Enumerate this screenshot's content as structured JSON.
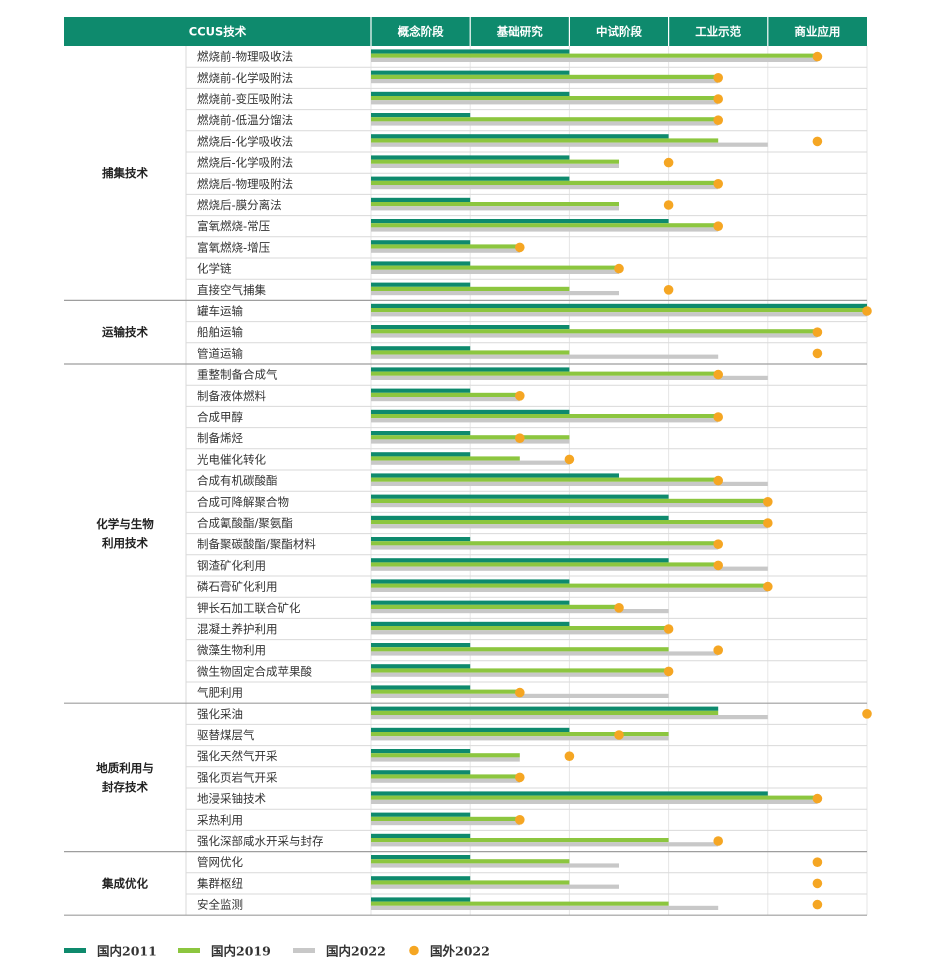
{
  "chart_data": {
    "type": "bar",
    "header": {
      "first_col": "CCUS技术",
      "stages": [
        "概念阶段",
        "基础研究",
        "中试阶段",
        "工业示范",
        "商业应用"
      ]
    },
    "value_scale": "stage units: 0 = start of 概念阶段, 5 = end of 商业应用",
    "xlim": [
      0,
      5
    ],
    "series": [
      {
        "name": "国内2011",
        "color": "#0e8a6d"
      },
      {
        "name": "国内2019",
        "color": "#8cc63f"
      },
      {
        "name": "国内2022",
        "color": "#c8c8c8"
      },
      {
        "name": "国外2022",
        "color": "#f5a623"
      }
    ],
    "categories": [
      {
        "label": "捕集技术",
        "label_lines": [
          "捕集技术"
        ],
        "rows": [
          {
            "name": "燃烧前-物理吸收法",
            "v2011": 2,
            "v2019": 4.5,
            "v2022": 4.5,
            "foreign": 4.5
          },
          {
            "name": "燃烧前-化学吸附法",
            "v2011": 2,
            "v2019": 3.5,
            "v2022": 3.5,
            "foreign": 3.5
          },
          {
            "name": "燃烧前-变压吸附法",
            "v2011": 2,
            "v2019": 3.5,
            "v2022": 3.5,
            "foreign": 3.5
          },
          {
            "name": "燃烧前-低温分馏法",
            "v2011": 1,
            "v2019": 3.5,
            "v2022": 3.5,
            "foreign": 3.5
          },
          {
            "name": "燃烧后-化学吸收法",
            "v2011": 3,
            "v2019": 3.5,
            "v2022": 4,
            "foreign": 4.5
          },
          {
            "name": "燃烧后-化学吸附法",
            "v2011": 2,
            "v2019": 2.5,
            "v2022": 2.5,
            "foreign": 3
          },
          {
            "name": "燃烧后-物理吸附法",
            "v2011": 2,
            "v2019": 3.5,
            "v2022": 3.5,
            "foreign": 3.5
          },
          {
            "name": "燃烧后-膜分离法",
            "v2011": 1,
            "v2019": 2.5,
            "v2022": 2.5,
            "foreign": 3
          },
          {
            "name": "富氧燃烧-常压",
            "v2011": 3,
            "v2019": 3.5,
            "v2022": 3.5,
            "foreign": 3.5
          },
          {
            "name": "富氧燃烧-增压",
            "v2011": 1,
            "v2019": 1.5,
            "v2022": 1.5,
            "foreign": 1.5
          },
          {
            "name": "化学链",
            "v2011": 1,
            "v2019": 2.5,
            "v2022": 2.5,
            "foreign": 2.5
          },
          {
            "name": "直接空气捕集",
            "v2011": 1,
            "v2019": 2,
            "v2022": 2.5,
            "foreign": 3
          }
        ]
      },
      {
        "label": "运输技术",
        "label_lines": [
          "运输技术"
        ],
        "rows": [
          {
            "name": "罐车运输",
            "v2011": 5,
            "v2019": 5,
            "v2022": 5,
            "foreign": 5
          },
          {
            "name": "船舶运输",
            "v2011": 2,
            "v2019": 4.5,
            "v2022": 4.5,
            "foreign": 4.5
          },
          {
            "name": "管道运输",
            "v2011": 1,
            "v2019": 2,
            "v2022": 3.5,
            "foreign": 4.5
          }
        ]
      },
      {
        "label": "化学与生物利用技术",
        "label_lines": [
          "化学与生物",
          "利用技术"
        ],
        "rows": [
          {
            "name": "重整制备合成气",
            "v2011": 2,
            "v2019": 3.5,
            "v2022": 4,
            "foreign": 3.5
          },
          {
            "name": "制备液体燃料",
            "v2011": 1,
            "v2019": 1.5,
            "v2022": 1.5,
            "foreign": 1.5
          },
          {
            "name": "合成甲醇",
            "v2011": 2,
            "v2019": 3.5,
            "v2022": 3.5,
            "foreign": 3.5
          },
          {
            "name": "制备烯烃",
            "v2011": 1,
            "v2019": 2,
            "v2022": 2,
            "foreign": 1.5
          },
          {
            "name": "光电催化转化",
            "v2011": 1,
            "v2019": 1.5,
            "v2022": 2,
            "foreign": 2
          },
          {
            "name": "合成有机碳酸酯",
            "v2011": 2.5,
            "v2019": 3.5,
            "v2022": 4,
            "foreign": 3.5
          },
          {
            "name": "合成可降解聚合物",
            "v2011": 3,
            "v2019": 4,
            "v2022": 4,
            "foreign": 4
          },
          {
            "name": "合成氰酸酯/聚氨酯",
            "v2011": 3,
            "v2019": 4,
            "v2022": 4,
            "foreign": 4
          },
          {
            "name": "制备聚碳酸酯/聚酯材料",
            "v2011": 1,
            "v2019": 3.5,
            "v2022": 3.5,
            "foreign": 3.5
          },
          {
            "name": "钢渣矿化利用",
            "v2011": 3,
            "v2019": 3.5,
            "v2022": 4,
            "foreign": 3.5
          },
          {
            "name": "磷石膏矿化利用",
            "v2011": 2,
            "v2019": 4,
            "v2022": 4,
            "foreign": 4
          },
          {
            "name": "钾长石加工联合矿化",
            "v2011": 2,
            "v2019": 2.5,
            "v2022": 3,
            "foreign": 2.5
          },
          {
            "name": "混凝土养护利用",
            "v2011": 2,
            "v2019": 3,
            "v2022": 3,
            "foreign": 3
          },
          {
            "name": "微藻生物利用",
            "v2011": 1,
            "v2019": 3,
            "v2022": 3.5,
            "foreign": 3.5
          },
          {
            "name": "微生物固定合成苹果酸",
            "v2011": 1,
            "v2019": 3,
            "v2022": 3,
            "foreign": 3
          },
          {
            "name": "气肥利用",
            "v2011": 1,
            "v2019": 1.5,
            "v2022": 3,
            "foreign": 1.5
          }
        ]
      },
      {
        "label": "地质利用与封存技术",
        "label_lines": [
          "地质利用与",
          "封存技术"
        ],
        "rows": [
          {
            "name": "强化采油",
            "v2011": 3.5,
            "v2019": 3.5,
            "v2022": 4,
            "foreign": 5
          },
          {
            "name": "驱替煤层气",
            "v2011": 2,
            "v2019": 3,
            "v2022": 3,
            "foreign": 2.5
          },
          {
            "name": "强化天然气开采",
            "v2011": 1,
            "v2019": 1.5,
            "v2022": 1.5,
            "foreign": 2
          },
          {
            "name": "强化页岩气开采",
            "v2011": 1,
            "v2019": 1.5,
            "v2022": 1.5,
            "foreign": 1.5
          },
          {
            "name": "地浸采铀技术",
            "v2011": 4,
            "v2019": 4.5,
            "v2022": 4.5,
            "foreign": 4.5
          },
          {
            "name": "采热利用",
            "v2011": 1,
            "v2019": 1.5,
            "v2022": 1.5,
            "foreign": 1.5
          },
          {
            "name": "强化深部咸水开采与封存",
            "v2011": 1,
            "v2019": 3,
            "v2022": 3.5,
            "foreign": 3.5
          }
        ]
      },
      {
        "label": "集成优化",
        "label_lines": [
          "集成优化"
        ],
        "rows": [
          {
            "name": "管网优化",
            "v2011": 1,
            "v2019": 2,
            "v2022": 2.5,
            "foreign": 4.5
          },
          {
            "name": "集群枢纽",
            "v2011": 1,
            "v2019": 2,
            "v2022": 2.5,
            "foreign": 4.5
          },
          {
            "name": "安全监测",
            "v2011": 1,
            "v2019": 3,
            "v2022": 3.5,
            "foreign": 4.5
          }
        ]
      }
    ],
    "legend": {
      "placement": "bottom-left",
      "items": [
        "国内2011",
        "国内2019",
        "国内2022",
        "国外2022"
      ]
    }
  },
  "colors": {
    "header_bg": "#0e8a6d",
    "header_text": "#ffffff",
    "row_line": "#d9d9d9",
    "section_line": "#9e9e9e",
    "grid": "#e6e6e6"
  }
}
